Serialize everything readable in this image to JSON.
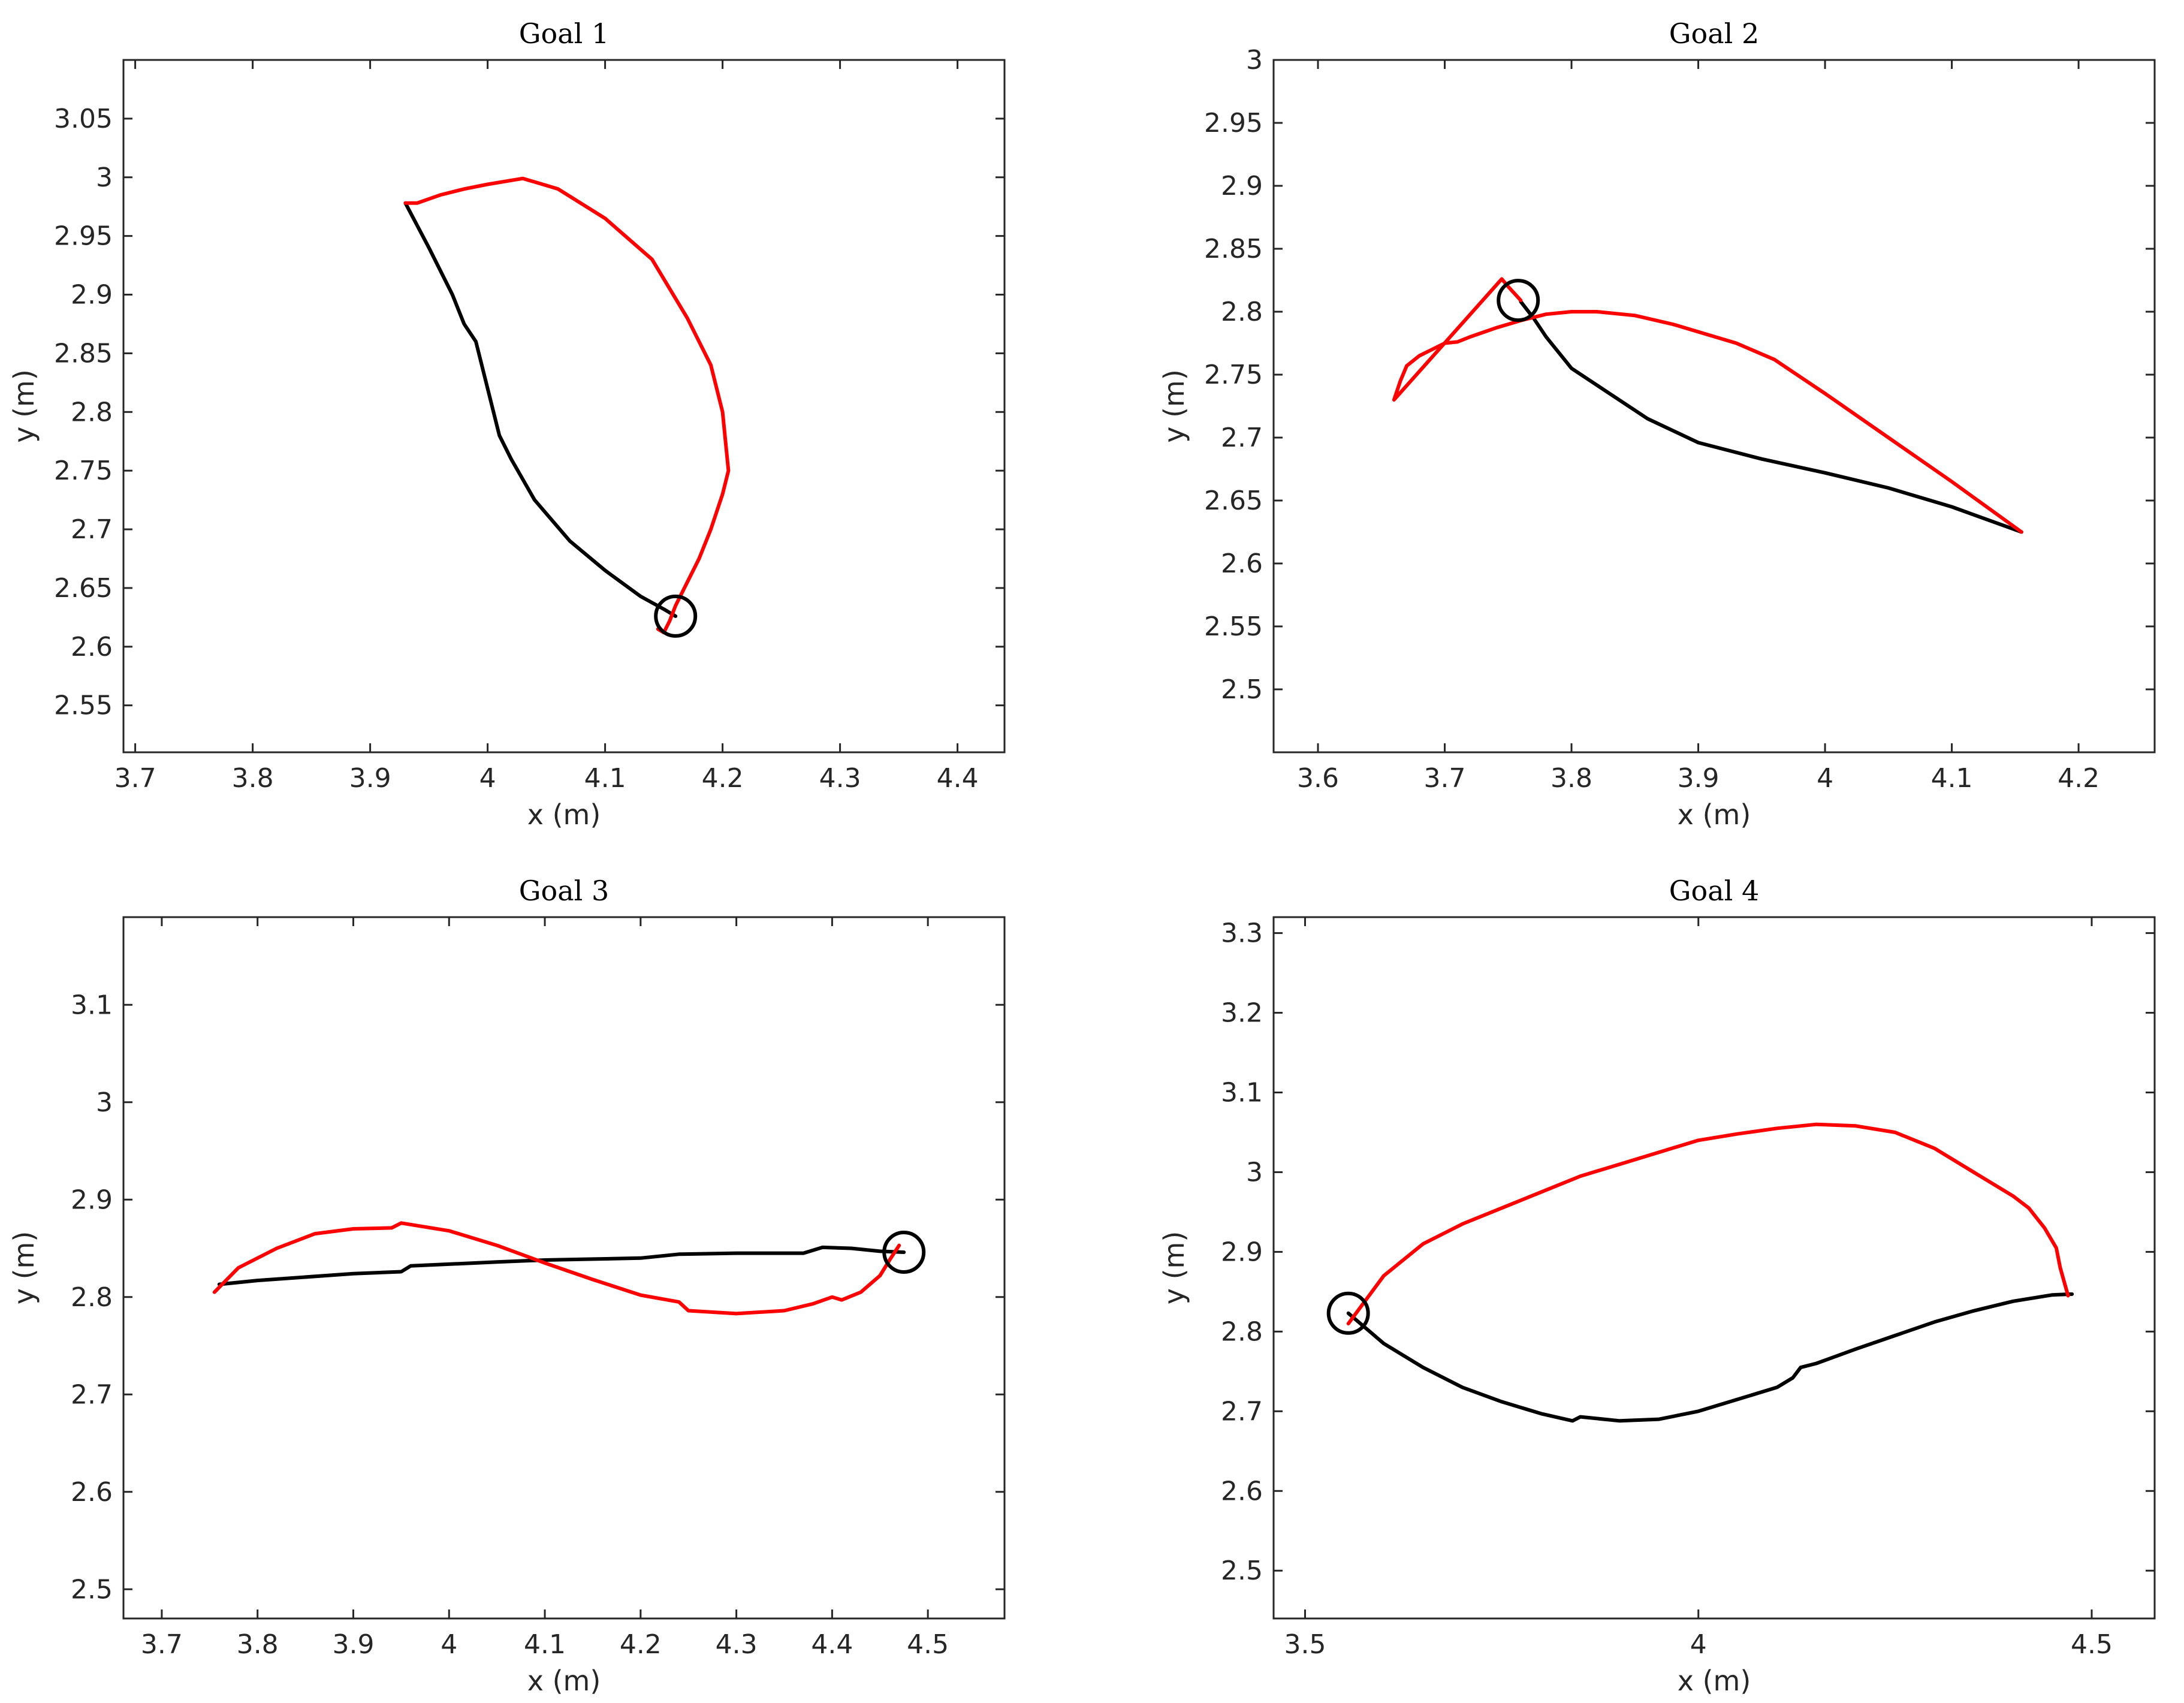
{
  "chart_data": [
    {
      "type": "line",
      "title": "Goal 1",
      "xlabel": "x (m)",
      "ylabel": "y (m)",
      "xlim": [
        3.69,
        4.44
      ],
      "ylim": [
        2.51,
        3.1
      ],
      "xticks": [
        3.7,
        3.8,
        3.9,
        4.0,
        4.1,
        4.2,
        4.3,
        4.4
      ],
      "xtick_labels": [
        "3.7",
        "3.8",
        "3.9",
        "4",
        "4.1",
        "4.2",
        "4.3",
        "4.4"
      ],
      "yticks": [
        2.55,
        2.6,
        2.65,
        2.7,
        2.75,
        2.8,
        2.85,
        2.9,
        2.95,
        3.0,
        3.05
      ],
      "ytick_labels": [
        "2.55",
        "2.6",
        "2.65",
        "2.7",
        "2.75",
        "2.8",
        "2.85",
        "2.9",
        "2.95",
        "3",
        "3.05"
      ],
      "goal": {
        "x": 4.16,
        "y": 2.626
      },
      "series": [
        {
          "name": "black path",
          "color": "#000000",
          "x": [
            3.93,
            3.95,
            3.97,
            3.98,
            3.99,
            4.0,
            4.01,
            4.02,
            4.04,
            4.07,
            4.1,
            4.13,
            4.15,
            4.16
          ],
          "y": [
            2.978,
            2.94,
            2.9,
            2.875,
            2.86,
            2.82,
            2.78,
            2.76,
            2.725,
            2.69,
            2.665,
            2.643,
            2.632,
            2.626
          ]
        },
        {
          "name": "red path",
          "color": "#ff0000",
          "x": [
            3.93,
            3.94,
            3.96,
            3.98,
            4.0,
            4.03,
            4.06,
            4.1,
            4.14,
            4.17,
            4.19,
            4.2,
            4.205,
            4.2,
            4.19,
            4.18,
            4.17,
            4.16,
            4.155,
            4.15,
            4.145
          ],
          "y": [
            2.978,
            2.978,
            2.985,
            2.99,
            2.994,
            2.999,
            2.99,
            2.965,
            2.93,
            2.88,
            2.84,
            2.8,
            2.75,
            2.73,
            2.7,
            2.675,
            2.655,
            2.635,
            2.622,
            2.612,
            2.615
          ]
        }
      ]
    },
    {
      "type": "line",
      "title": "Goal 2",
      "xlabel": "x (m)",
      "ylabel": "y (m)",
      "xlim": [
        3.565,
        4.26
      ],
      "ylim": [
        2.45,
        3.0
      ],
      "xticks": [
        3.6,
        3.7,
        3.8,
        3.9,
        4.0,
        4.1,
        4.2
      ],
      "xtick_labels": [
        "3.6",
        "3.7",
        "3.8",
        "3.9",
        "4",
        "4.1",
        "4.2"
      ],
      "yticks": [
        2.5,
        2.55,
        2.6,
        2.65,
        2.7,
        2.75,
        2.8,
        2.85,
        2.9,
        2.95,
        3.0
      ],
      "ytick_labels": [
        "2.5",
        "2.55",
        "2.6",
        "2.65",
        "2.7",
        "2.75",
        "2.8",
        "2.85",
        "2.9",
        "2.95",
        "3"
      ],
      "goal": {
        "x": 3.758,
        "y": 2.809
      },
      "series": [
        {
          "name": "black path",
          "color": "#000000",
          "x": [
            4.155,
            4.1,
            4.05,
            4.0,
            3.95,
            3.9,
            3.86,
            3.83,
            3.8,
            3.78,
            3.77,
            3.76
          ],
          "y": [
            2.625,
            2.645,
            2.66,
            2.672,
            2.683,
            2.696,
            2.715,
            2.735,
            2.755,
            2.78,
            2.795,
            2.808
          ]
        },
        {
          "name": "red path",
          "color": "#ff0000",
          "x": [
            4.155,
            4.1,
            4.05,
            4.0,
            3.96,
            3.93,
            3.88,
            3.85,
            3.82,
            3.8,
            3.78,
            3.76,
            3.74,
            3.72,
            3.71,
            3.7,
            3.69,
            3.68,
            3.67,
            3.665,
            3.66,
            3.745,
            3.75,
            3.76
          ],
          "y": [
            2.625,
            2.665,
            2.7,
            2.735,
            2.762,
            2.775,
            2.79,
            2.797,
            2.8,
            2.8,
            2.798,
            2.793,
            2.787,
            2.78,
            2.776,
            2.775,
            2.77,
            2.765,
            2.757,
            2.745,
            2.73,
            2.826,
            2.82,
            2.809
          ]
        }
      ]
    },
    {
      "type": "line",
      "title": "Goal 3",
      "xlabel": "x (m)",
      "ylabel": "y (m)",
      "xlim": [
        3.66,
        4.58
      ],
      "ylim": [
        2.47,
        3.19
      ],
      "xticks": [
        3.7,
        3.8,
        3.9,
        4.0,
        4.1,
        4.2,
        4.3,
        4.4,
        4.5
      ],
      "xtick_labels": [
        "3.7",
        "3.8",
        "3.9",
        "4",
        "4.1",
        "4.2",
        "4.3",
        "4.4",
        "4.5"
      ],
      "yticks": [
        2.5,
        2.6,
        2.7,
        2.8,
        2.9,
        3.0,
        3.1
      ],
      "ytick_labels": [
        "2.5",
        "2.6",
        "2.7",
        "2.8",
        "2.9",
        "3",
        "3.1"
      ],
      "goal": {
        "x": 4.475,
        "y": 2.846
      },
      "series": [
        {
          "name": "black path",
          "color": "#000000",
          "x": [
            3.76,
            3.8,
            3.9,
            3.95,
            3.96,
            4.05,
            4.1,
            4.2,
            4.24,
            4.3,
            4.37,
            4.39,
            4.42,
            4.45,
            4.475
          ],
          "y": [
            2.813,
            2.817,
            2.824,
            2.826,
            2.832,
            2.836,
            2.838,
            2.84,
            2.844,
            2.845,
            2.845,
            2.851,
            2.85,
            2.847,
            2.846
          ]
        },
        {
          "name": "red path",
          "color": "#ff0000",
          "x": [
            3.755,
            3.78,
            3.82,
            3.86,
            3.9,
            3.94,
            3.95,
            4.0,
            4.05,
            4.1,
            4.15,
            4.2,
            4.24,
            4.25,
            4.3,
            4.35,
            4.38,
            4.4,
            4.41,
            4.43,
            4.45,
            4.46,
            4.47
          ],
          "y": [
            2.805,
            2.83,
            2.85,
            2.865,
            2.87,
            2.871,
            2.876,
            2.868,
            2.853,
            2.835,
            2.818,
            2.802,
            2.795,
            2.786,
            2.783,
            2.786,
            2.793,
            2.8,
            2.797,
            2.805,
            2.822,
            2.838,
            2.853
          ]
        }
      ]
    },
    {
      "type": "line",
      "title": "Goal 4",
      "xlabel": "x (m)",
      "ylabel": "y (m)",
      "xlim": [
        3.46,
        4.58
      ],
      "ylim": [
        2.44,
        3.32
      ],
      "xticks": [
        3.5,
        4.0,
        4.5
      ],
      "xtick_labels": [
        "3.5",
        "4",
        "4.5"
      ],
      "yticks": [
        2.5,
        2.6,
        2.7,
        2.8,
        2.9,
        3.0,
        3.1,
        3.2,
        3.3
      ],
      "ytick_labels": [
        "2.5",
        "2.6",
        "2.7",
        "2.8",
        "2.9",
        "3",
        "3.1",
        "3.2",
        "3.3"
      ],
      "goal": {
        "x": 3.555,
        "y": 2.823
      },
      "series": [
        {
          "name": "black path",
          "color": "#000000",
          "x": [
            3.555,
            3.6,
            3.65,
            3.7,
            3.75,
            3.8,
            3.84,
            3.85,
            3.9,
            3.95,
            4.0,
            4.05,
            4.1,
            4.12,
            4.13,
            4.15,
            4.2,
            4.25,
            4.3,
            4.35,
            4.4,
            4.45,
            4.475
          ],
          "y": [
            2.823,
            2.785,
            2.755,
            2.73,
            2.712,
            2.697,
            2.688,
            2.693,
            2.688,
            2.69,
            2.7,
            2.715,
            2.73,
            2.742,
            2.755,
            2.76,
            2.778,
            2.795,
            2.812,
            2.826,
            2.838,
            2.846,
            2.847
          ]
        },
        {
          "name": "red path",
          "color": "#ff0000",
          "x": [
            3.555,
            3.6,
            3.65,
            3.7,
            3.75,
            3.8,
            3.85,
            3.9,
            3.95,
            4.0,
            4.05,
            4.1,
            4.15,
            4.2,
            4.25,
            4.3,
            4.35,
            4.4,
            4.42,
            4.44,
            4.455,
            4.46,
            4.47
          ],
          "y": [
            2.81,
            2.87,
            2.91,
            2.935,
            2.955,
            2.975,
            2.995,
            3.01,
            3.025,
            3.04,
            3.048,
            3.055,
            3.06,
            3.058,
            3.05,
            3.03,
            3.0,
            2.97,
            2.955,
            2.93,
            2.905,
            2.88,
            2.845
          ]
        }
      ]
    }
  ]
}
